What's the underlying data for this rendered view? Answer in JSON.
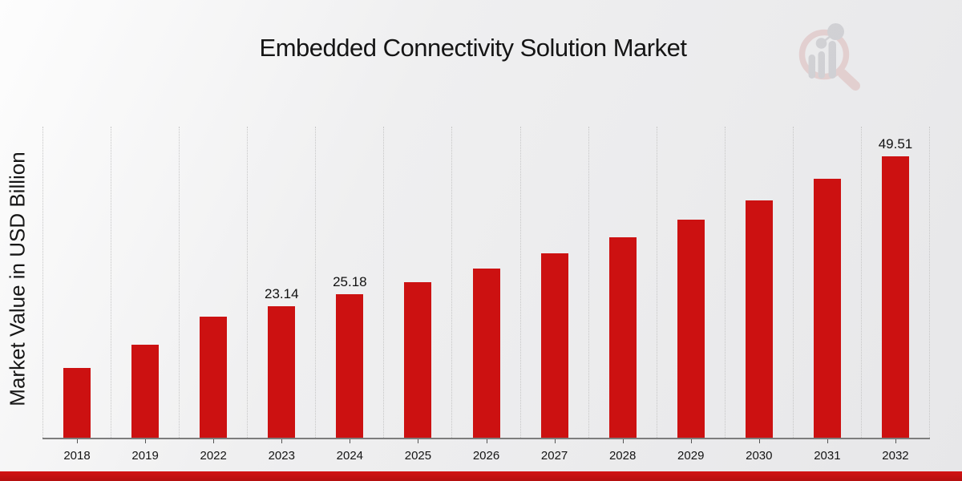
{
  "page": {
    "title": "Embedded Connectivity Solution Market"
  },
  "chart_data": {
    "type": "bar",
    "title": "Embedded Connectivity Solution Market",
    "xlabel": "",
    "ylabel": "Market Value in USD Billion",
    "categories": [
      "2018",
      "2019",
      "2022",
      "2023",
      "2024",
      "2025",
      "2026",
      "2027",
      "2028",
      "2029",
      "2030",
      "2031",
      "2032"
    ],
    "values": [
      12.3,
      16.4,
      21.3,
      23.14,
      25.18,
      27.4,
      29.8,
      32.45,
      35.3,
      38.4,
      41.8,
      45.5,
      49.51
    ],
    "data_labels": [
      "",
      "",
      "",
      "23.14",
      "25.18",
      "",
      "",
      "",
      "",
      "",
      "",
      "",
      "49.51"
    ],
    "ylim": [
      0,
      54.7
    ],
    "y_axis_ticks_visible": false,
    "grid": "vertical dotted lines at category boundaries",
    "legend": "none",
    "bar_color": "#cc1111"
  },
  "colors": {
    "bar": "#cc1111",
    "footer_band": "#c51111",
    "text": "#151515",
    "gridline": "#c6c6c6",
    "axis_line": "#7d7d7d",
    "logo_ring": "#dcb9b9",
    "logo_gray": "#bcbcc2"
  },
  "watermark": {
    "icon": "magnifier-bar-chart-logo"
  }
}
